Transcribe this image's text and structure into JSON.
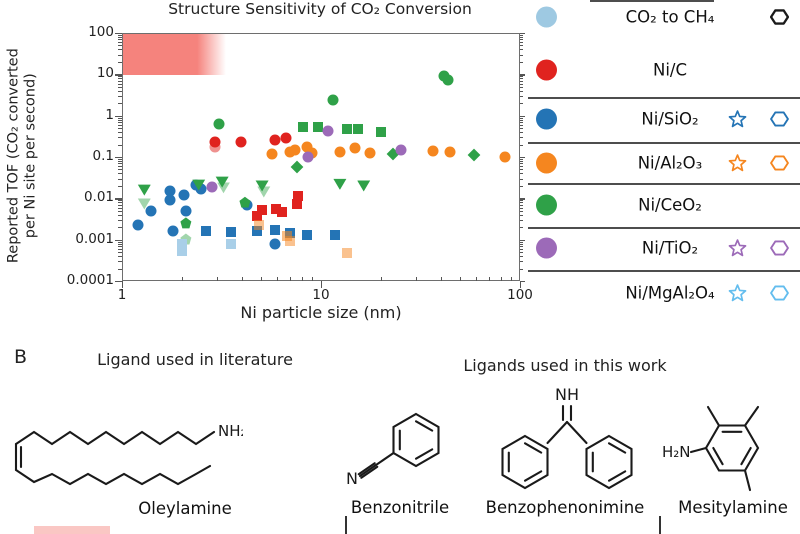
{
  "panel_a": {
    "title": "Structure Sensitivity of CO₂ Conversion",
    "y_axis_label_line1": "Reported TOF (CO₂ converted",
    "y_axis_label_line2": "per Ni site per second)",
    "x_axis_label": "Ni particle size (nm)"
  },
  "chart_data": {
    "type": "scatter",
    "x_scale": "log",
    "y_scale": "log",
    "xlim": [
      1,
      100
    ],
    "ylim": [
      0.0001,
      100
    ],
    "x_ticks": [
      "1",
      "10",
      "100"
    ],
    "y_ticks": [
      "100",
      "10",
      "1",
      "0.1",
      "0.01",
      "0.001",
      "0.0001"
    ],
    "title": "Structure Sensitivity of CO₂ Conversion",
    "xlabel": "Ni particle size (nm)",
    "ylabel": "Reported TOF (CO₂ converted per Ni site per second)",
    "danger_zone": {
      "color": "#f5837d",
      "x_range": [
        1,
        3
      ],
      "y_range": [
        10,
        100
      ]
    },
    "series": [
      {
        "name": "Ni/C",
        "color": "#e0231f",
        "markers": [
          {
            "shape": "circle",
            "pts": [
              [
                2.9,
                0.25
              ],
              [
                2.9,
                0.18,
                0.5
              ],
              [
                3.9,
                0.25
              ],
              [
                5.8,
                0.28
              ],
              [
                6.6,
                0.31
              ]
            ]
          },
          {
            "shape": "square",
            "pts": [
              [
                4.7,
                0.004
              ],
              [
                5.0,
                0.0055
              ],
              [
                5.9,
                0.006
              ],
              [
                6.3,
                0.005
              ],
              [
                7.5,
                0.0075
              ],
              [
                7.6,
                0.012
              ]
            ]
          }
        ]
      },
      {
        "name": "Ni/SiO₂",
        "color": "#2474b5",
        "markers": [
          {
            "shape": "circle",
            "pts": [
              [
                1.19,
                0.0024
              ],
              [
                1.39,
                0.0052
              ],
              [
                1.73,
                0.0155
              ],
              [
                1.73,
                0.0098
              ],
              [
                1.79,
                0.0017
              ],
              [
                2.02,
                0.013
              ],
              [
                2.07,
                0.0052
              ],
              [
                2.32,
                0.0228
              ],
              [
                2.46,
                0.018
              ],
              [
                4.2,
                0.0073
              ],
              [
                5.8,
                0.00081
              ]
            ]
          },
          {
            "shape": "square",
            "pts": [
              [
                2.6,
                0.0017
              ],
              [
                3.5,
                0.0016
              ],
              [
                4.7,
                0.0017
              ],
              [
                5.8,
                0.0018
              ],
              [
                6.9,
                0.0015
              ],
              [
                8.4,
                0.0014
              ],
              [
                11.6,
                0.0014
              ]
            ]
          }
        ]
      },
      {
        "name": "Ni/Al₂O₃",
        "color": "#f5861f",
        "markers": [
          {
            "shape": "circle",
            "pts": [
              [
                5.6,
                0.128
              ],
              [
                6.9,
                0.143
              ],
              [
                7.3,
                0.16
              ],
              [
                8.4,
                0.187
              ],
              [
                8.9,
                0.134
              ],
              [
                12.3,
                0.143
              ],
              [
                14.7,
                0.177
              ],
              [
                17.5,
                0.134
              ],
              [
                36,
                0.15
              ],
              [
                44,
                0.143
              ],
              [
                83,
                0.108
              ]
            ]
          },
          {
            "shape": "square",
            "pts": [
              [
                4.85,
                0.0024,
                0.5
              ],
              [
                6.7,
                0.0013,
                0.55
              ],
              [
                6.9,
                0.001,
                0.5
              ],
              [
                13.4,
                0.00049,
                0.5
              ]
            ]
          }
        ]
      },
      {
        "name": "Ni/CeO₂",
        "color": "#2fa148",
        "markers": [
          {
            "shape": "circle",
            "pts": [
              [
                3.05,
                0.68
              ],
              [
                11.4,
                2.6
              ],
              [
                41,
                9.9
              ],
              [
                43,
                7.9
              ]
            ]
          },
          {
            "shape": "square",
            "pts": [
              [
                8.0,
                0.57
              ],
              [
                9.5,
                0.57
              ],
              [
                13.4,
                0.51
              ],
              [
                15.1,
                0.51
              ],
              [
                19.7,
                0.43
              ]
            ]
          },
          {
            "shape": "triangle",
            "pts": [
              [
                1.28,
                0.0167
              ],
              [
                1.28,
                0.0077,
                0.45
              ],
              [
                2.4,
                0.022
              ],
              [
                3.15,
                0.026
              ],
              [
                3.2,
                0.019,
                0.45
              ],
              [
                5.0,
                0.021
              ],
              [
                5.1,
                0.015,
                0.45
              ],
              [
                12.3,
                0.023
              ],
              [
                16.2,
                0.021
              ]
            ]
          },
          {
            "shape": "pentagon",
            "pts": [
              [
                2.07,
                0.0027
              ],
              [
                2.07,
                0.0011,
                0.45
              ],
              [
                4.1,
                0.0085
              ]
            ]
          },
          {
            "shape": "diamond",
            "pts": [
              [
                7.5,
                0.061
              ],
              [
                22.7,
                0.128
              ],
              [
                58,
                0.115
              ]
            ]
          }
        ]
      },
      {
        "name": "Ni/TiO₂",
        "color": "#9c6ab8",
        "markers": [
          {
            "shape": "circle",
            "pts": [
              [
                2.8,
                0.02
              ],
              [
                8.5,
                0.106
              ],
              [
                10.7,
                0.46
              ],
              [
                25,
                0.16
              ]
            ]
          }
        ]
      },
      {
        "name": "Ni/MgAl₂O₄",
        "color": "#a9cfe8",
        "markers": [
          {
            "shape": "square",
            "pts": [
              [
                1.98,
                0.00081
              ],
              [
                1.98,
                0.00055
              ],
              [
                3.5,
                0.00081
              ]
            ]
          }
        ]
      }
    ]
  },
  "legend": {
    "rows": [
      {
        "label": "CO₂ to CH₄",
        "color": "#9ec9e2",
        "filled_circle": true,
        "open_star": false,
        "open_hexagon": true,
        "symbol_color": "#1a1a1a"
      },
      {
        "label": "Ni/C",
        "color": "#e0231f",
        "filled_circle": true,
        "open_star": false,
        "open_hexagon": false,
        "symbol_color": ""
      },
      {
        "label": "Ni/SiO₂",
        "color": "#2474b5",
        "filled_circle": true,
        "open_star": true,
        "open_hexagon": true,
        "symbol_color": "#2474b5"
      },
      {
        "label": "Ni/Al₂O₃",
        "color": "#f5861f",
        "filled_circle": true,
        "open_star": true,
        "open_hexagon": true,
        "symbol_color": "#f5861f"
      },
      {
        "label": "Ni/CeO₂",
        "color": "#2fa148",
        "filled_circle": true,
        "open_star": false,
        "open_hexagon": false,
        "symbol_color": ""
      },
      {
        "label": "Ni/TiO₂",
        "color": "#9c6ab8",
        "filled_circle": true,
        "open_star": true,
        "open_hexagon": true,
        "symbol_color": "#9c6ab8"
      },
      {
        "label": "Ni/MgAl₂O₄",
        "color": "",
        "filled_circle": false,
        "open_star": true,
        "open_hexagon": true,
        "symbol_color": "#63bdee"
      }
    ]
  },
  "panel_b": {
    "label": "B",
    "literature_heading": "Ligand used in literature",
    "work_heading": "Ligands used in this work",
    "molecules": [
      {
        "name": "Oleylamine",
        "atom_label": "NH₂"
      },
      {
        "name": "Benzonitrile",
        "atom_label": "N"
      },
      {
        "name": "Benzophenonimine",
        "atom_label": "NH"
      },
      {
        "name": "Mesitylamine",
        "atom_label": "H₂N"
      }
    ]
  }
}
